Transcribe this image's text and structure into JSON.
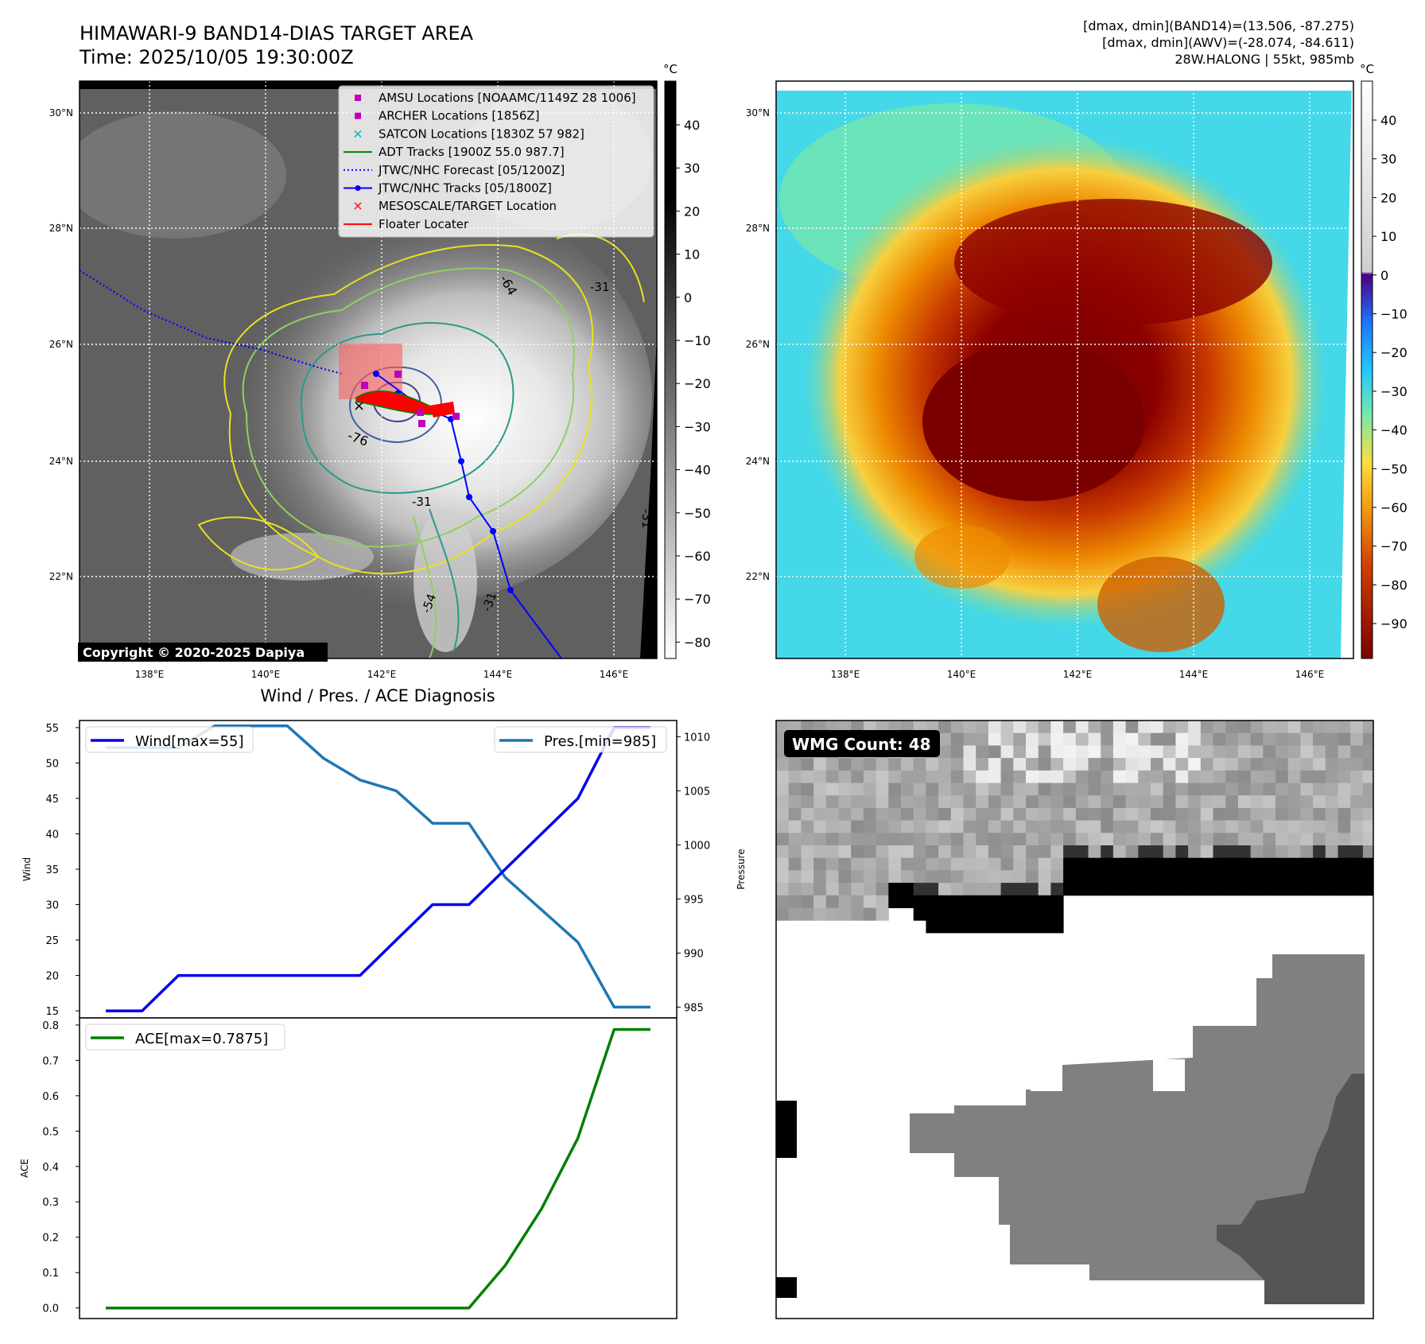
{
  "header": {
    "title": "HIMAWARI-9 BAND14-DIAS TARGET AREA",
    "time": "Time: 2025/10/05 19:30:00Z",
    "stats_line1": "[dmax, dmin](BAND14)=(13.506, -87.275)",
    "stats_line2": "[dmax, dmin](AWV)=(-28.074, -84.611)",
    "storm_line": "28W.HALONG | 55kt, 985mb"
  },
  "map_axes": {
    "lat_labels": [
      "30°N",
      "28°N",
      "26°N",
      "24°N",
      "22°N"
    ],
    "lon_labels": [
      "138°E",
      "140°E",
      "142°E",
      "144°E",
      "146°E"
    ]
  },
  "ir_panel": {
    "copyright": "Copyright © 2020-2025 Dapiya",
    "colorbar_unit": "°C",
    "colorbar_ticks": [
      "40",
      "30",
      "20",
      "10",
      "0",
      "−10",
      "−20",
      "−30",
      "−40",
      "−50",
      "−60",
      "−70",
      "−80"
    ],
    "contour_labels": [
      "-64",
      "-76",
      "-31",
      "-31",
      "-31",
      "-54",
      "-31"
    ],
    "legend": [
      {
        "label": "AMSU Locations [NOAAMC/1149Z 28 1006]",
        "color": "#c000c0",
        "marker": "square"
      },
      {
        "label": "ARCHER Locations [1856Z]",
        "color": "#c000c0",
        "marker": "square"
      },
      {
        "label": "SATCON Locations [1830Z 57 982]",
        "color": "#00b0b0",
        "marker": "x"
      },
      {
        "label": "ADT Tracks [1900Z 55.0 987.7]",
        "color": "#008000",
        "marker": "line"
      },
      {
        "label": "JTWC/NHC Forecast [05/1200Z]",
        "color": "#0000ff",
        "marker": "dotted"
      },
      {
        "label": "JTWC/NHC Tracks [05/1800Z]",
        "color": "#0000ff",
        "marker": "line-dot"
      },
      {
        "label": "MESOSCALE/TARGET Location",
        "color": "#ff0000",
        "marker": "x"
      },
      {
        "label": "Floater Locater",
        "color": "#ff0000",
        "marker": "line"
      }
    ]
  },
  "awv_panel": {
    "colorbar_unit": "°C",
    "colorbar_ticks": [
      "40",
      "30",
      "20",
      "10",
      "0",
      "−10",
      "−20",
      "−30",
      "−40",
      "−50",
      "−60",
      "−70",
      "−80",
      "−90"
    ]
  },
  "diag_panel": {
    "title": "Wind / Pres. / ACE Diagnosis",
    "wind_axis_label": "Wind",
    "pres_axis_label": "Pressure",
    "ace_axis_label": "ACE",
    "wind_ticks": [
      "55",
      "50",
      "45",
      "40",
      "35",
      "30",
      "25",
      "20",
      "15"
    ],
    "pres_ticks": [
      "1010",
      "1005",
      "1000",
      "995",
      "990",
      "985"
    ],
    "ace_ticks": [
      "0.8",
      "0.7",
      "0.6",
      "0.5",
      "0.4",
      "0.3",
      "0.2",
      "0.1",
      "0.0"
    ],
    "wind_legend": "Wind[max=55]",
    "pres_legend": "Pres.[min=985]",
    "ace_legend": "ACE[max=0.7875]",
    "wind_color": "#0000ee",
    "pres_color": "#1f77b4",
    "ace_color": "#008000"
  },
  "wmg_panel": {
    "count_label": "WMG Count: 48"
  },
  "chart_data": [
    {
      "type": "line",
      "title": "Wind / Pres. / ACE Diagnosis",
      "x": [
        0,
        1,
        2,
        3,
        4,
        5,
        6,
        7,
        8,
        9,
        10,
        11,
        12,
        13,
        14,
        15
      ],
      "series": [
        {
          "name": "Wind[max=55]",
          "axis": "left",
          "values": [
            15,
            15,
            20,
            20,
            20,
            20,
            20,
            20,
            25,
            30,
            30,
            35,
            40,
            45,
            55,
            55
          ]
        },
        {
          "name": "Pres.[min=985]",
          "axis": "right",
          "values": [
            1009,
            1009,
            1009,
            1011,
            1011,
            1011,
            1008,
            1006,
            1005,
            1002,
            1002,
            997,
            994,
            991,
            985,
            985
          ]
        }
      ],
      "ylabel": "Wind",
      "y2label": "Pressure",
      "ylim": [
        14,
        56
      ],
      "y2lim": [
        984,
        1011.5
      ]
    },
    {
      "type": "line",
      "title": "",
      "x": [
        0,
        1,
        2,
        3,
        4,
        5,
        6,
        7,
        8,
        9,
        10,
        11,
        12,
        13,
        14,
        15
      ],
      "series": [
        {
          "name": "ACE[max=0.7875]",
          "values": [
            0,
            0,
            0,
            0,
            0,
            0,
            0,
            0,
            0,
            0,
            0,
            0.12,
            0.28,
            0.48,
            0.7875,
            0.7875
          ]
        }
      ],
      "ylabel": "ACE",
      "ylim": [
        -0.03,
        0.82
      ]
    }
  ]
}
